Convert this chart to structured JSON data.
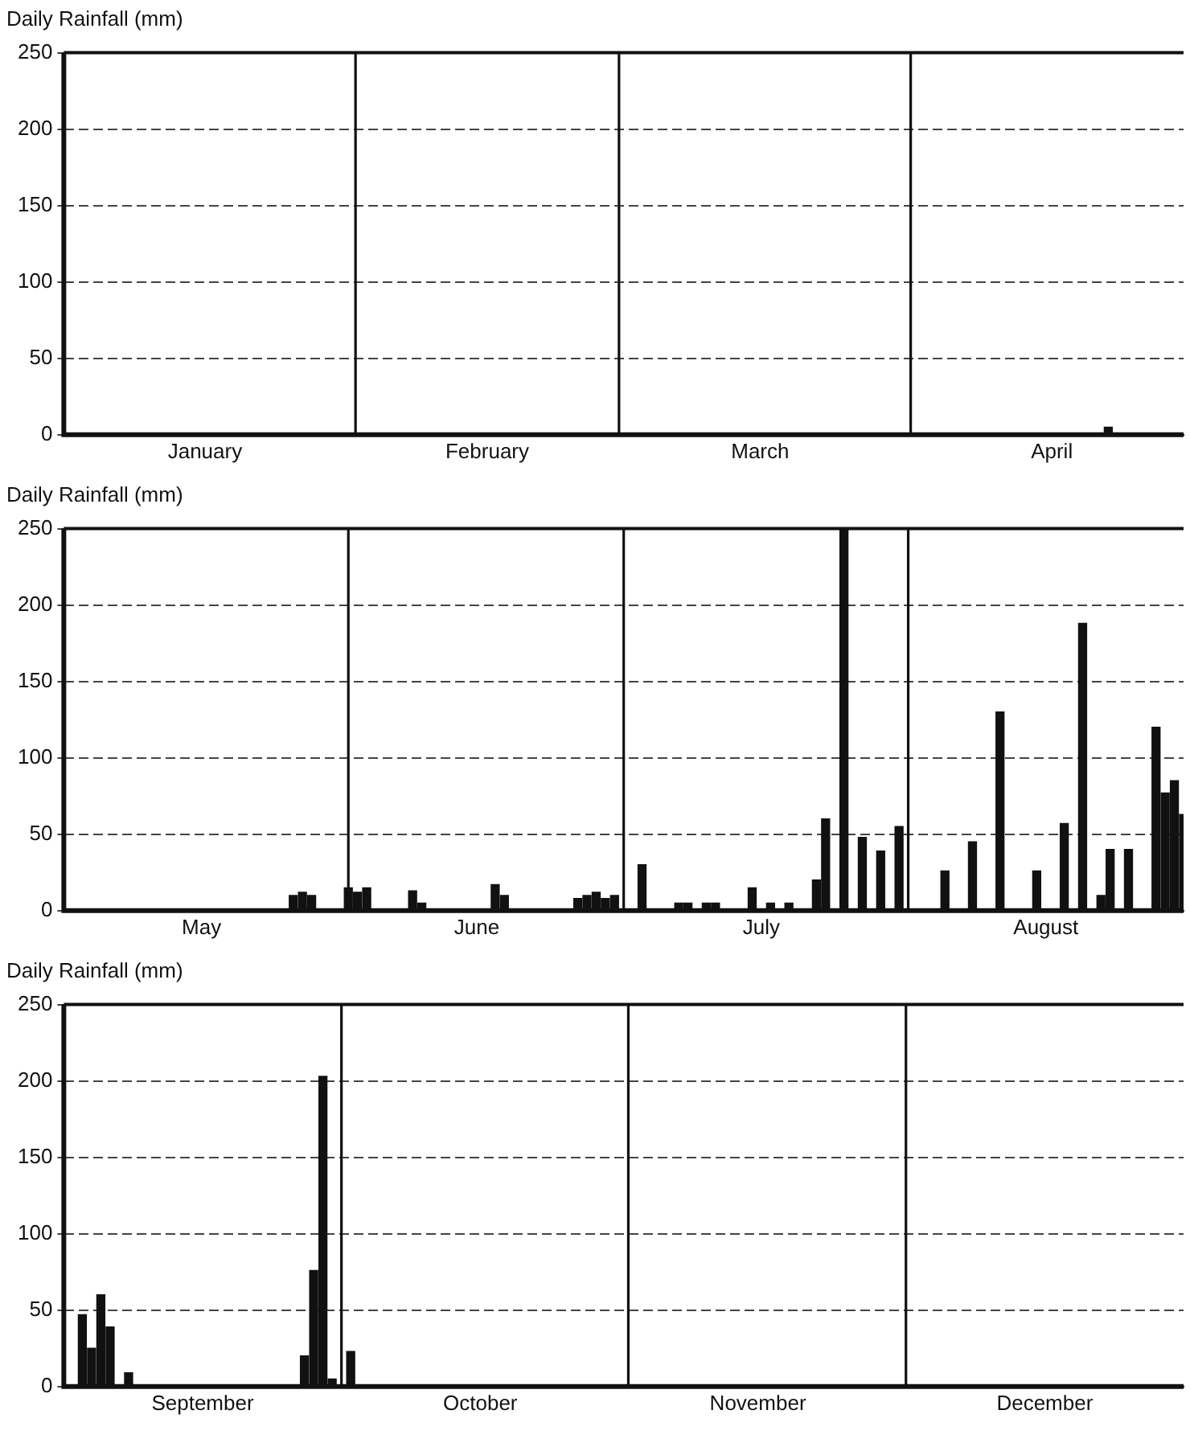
{
  "chart_data": [
    {
      "type": "bar",
      "ylabel": "Daily Rainfall (mm)",
      "x": [
        "--04-22"
      ],
      "values": [
        5
      ],
      "color": "#111111",
      "xlim": [
        "--01-01",
        "--04-30"
      ],
      "xticks": [
        {
          "value": "--01-16",
          "label": "January"
        },
        {
          "value": "--02-15",
          "label": "February"
        },
        {
          "value": "--03-16",
          "label": "March"
        },
        {
          "value": "--04-16",
          "label": "April"
        }
      ],
      "ylim": [
        0,
        250
      ],
      "yticks": [
        0,
        50,
        100,
        150,
        200,
        250
      ],
      "ref_lines": [
        {
          "axis": "x",
          "value": "--02-01"
        },
        {
          "axis": "x",
          "value": "--03-01"
        },
        {
          "axis": "x",
          "value": "--04-01"
        }
      ],
      "grid": "y",
      "legend": false
    },
    {
      "type": "bar",
      "ylabel": "Daily Rainfall (mm)",
      "x": [
        "--05-26",
        "--05-27",
        "--05-28",
        "--06-01",
        "--06-02",
        "--06-03",
        "--06-08",
        "--06-09",
        "--06-17",
        "--06-18",
        "--06-26",
        "--06-27",
        "--06-28",
        "--06-29",
        "--06-30",
        "--07-03",
        "--07-07",
        "--07-08",
        "--07-10",
        "--07-11",
        "--07-15",
        "--07-17",
        "--07-19",
        "--07-22",
        "--07-23",
        "--07-25",
        "--07-27",
        "--07-29",
        "--07-31",
        "--08-05",
        "--08-08",
        "--08-11",
        "--08-15",
        "--08-18",
        "--08-20",
        "--08-22",
        "--08-23",
        "--08-25",
        "--08-28",
        "--08-29",
        "--08-30",
        "--08-31"
      ],
      "values": [
        10,
        12,
        10,
        15,
        12,
        15,
        13,
        5,
        17,
        10,
        8,
        10,
        12,
        8,
        10,
        30,
        5,
        5,
        5,
        5,
        15,
        5,
        5,
        20,
        60,
        250,
        48,
        39,
        55,
        26,
        45,
        130,
        26,
        57,
        188,
        10,
        40,
        40,
        120,
        77,
        85,
        63
      ],
      "color": "#111111",
      "xlim": [
        "--05-01",
        "--08-31"
      ],
      "xticks": [
        {
          "value": "--05-16",
          "label": "May"
        },
        {
          "value": "--06-15",
          "label": "June"
        },
        {
          "value": "--07-16",
          "label": "July"
        },
        {
          "value": "--08-16",
          "label": "August"
        }
      ],
      "ylim": [
        0,
        250
      ],
      "yticks": [
        0,
        50,
        100,
        150,
        200,
        250
      ],
      "ref_lines": [
        {
          "axis": "x",
          "value": "--06-01"
        },
        {
          "axis": "x",
          "value": "--07-01"
        },
        {
          "axis": "x",
          "value": "--08-01"
        }
      ],
      "grid": "y",
      "legend": false
    },
    {
      "type": "bar",
      "ylabel": "Daily Rainfall (mm)",
      "x": [
        "--09-03",
        "--09-04",
        "--09-05",
        "--09-06",
        "--09-08",
        "--09-27",
        "--09-28",
        "--09-29",
        "--09-30",
        "--10-02"
      ],
      "values": [
        47,
        25,
        60,
        39,
        9,
        20,
        76,
        203,
        5,
        23
      ],
      "color": "#111111",
      "xlim": [
        "--09-01",
        "--12-31"
      ],
      "xticks": [
        {
          "value": "--09-16",
          "label": "September"
        },
        {
          "value": "--10-16",
          "label": "October"
        },
        {
          "value": "--11-15",
          "label": "November"
        },
        {
          "value": "--12-16",
          "label": "December"
        }
      ],
      "ylim": [
        0,
        250
      ],
      "yticks": [
        0,
        50,
        100,
        150,
        200,
        250
      ],
      "ref_lines": [
        {
          "axis": "x",
          "value": "--10-01"
        },
        {
          "axis": "x",
          "value": "--11-01"
        },
        {
          "axis": "x",
          "value": "--12-01"
        }
      ],
      "grid": "y",
      "legend": false
    }
  ]
}
